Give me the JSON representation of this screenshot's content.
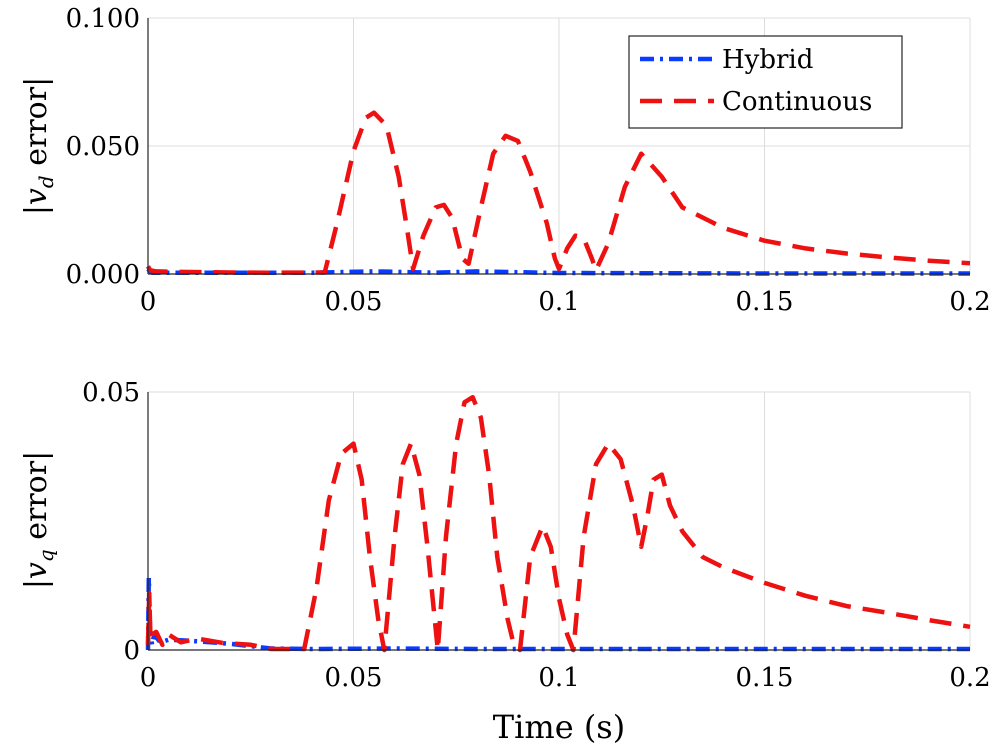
{
  "chart_data": [
    {
      "type": "line",
      "ylabel_parts": {
        "pre": "|",
        "var": "v",
        "sub": "d",
        "post": " error|"
      },
      "xlim": [
        0,
        0.2
      ],
      "ylim": [
        0,
        0.1
      ],
      "xticks": [
        0,
        0.05,
        0.1,
        0.15,
        0.2
      ],
      "xtick_labels": [
        "0",
        "0.05",
        "0.1",
        "0.15",
        "0.2"
      ],
      "yticks": [
        0,
        0.05,
        0.1
      ],
      "ytick_labels": [
        "0.000",
        "0.050",
        "0.100"
      ],
      "legend": {
        "position": "top-right",
        "entries": [
          "Hybrid",
          "Continuous"
        ]
      },
      "series": [
        {
          "name": "Hybrid",
          "color": "#0a3cff",
          "style": "dash-dot",
          "x": [
            0,
            0.0005,
            0.001,
            0.02,
            0.04,
            0.055,
            0.07,
            0.08,
            0.1,
            0.12,
            0.15,
            0.2
          ],
          "y": [
            0.002,
            0.001,
            0.0005,
            0.0005,
            0.0005,
            0.001,
            0.0005,
            0.001,
            0.0004,
            0.0003,
            0.0002,
            0.0002
          ]
        },
        {
          "name": "Continuous",
          "color": "#ee1111",
          "style": "dashed",
          "x": [
            0,
            0.0005,
            0.002,
            0.01,
            0.02,
            0.03,
            0.043,
            0.046,
            0.05,
            0.053,
            0.055,
            0.058,
            0.061,
            0.063,
            0.0645,
            0.067,
            0.07,
            0.072,
            0.074,
            0.0765,
            0.078,
            0.081,
            0.084,
            0.087,
            0.09,
            0.093,
            0.097,
            0.099,
            0.1,
            0.102,
            0.104,
            0.106,
            0.108,
            0.109,
            0.112,
            0.116,
            0.12,
            0.125,
            0.13,
            0.14,
            0.15,
            0.16,
            0.17,
            0.18,
            0.19,
            0.2
          ],
          "y": [
            0.003,
            0.0015,
            0.001,
            0.0008,
            0.0006,
            0.0005,
            0.0006,
            0.02,
            0.048,
            0.061,
            0.063,
            0.058,
            0.038,
            0.018,
            0.002,
            0.015,
            0.026,
            0.027,
            0.022,
            0.006,
            0.004,
            0.026,
            0.047,
            0.054,
            0.052,
            0.04,
            0.02,
            0.006,
            0.002,
            0.01,
            0.015,
            0.014,
            0.006,
            0.0015,
            0.012,
            0.034,
            0.047,
            0.038,
            0.026,
            0.018,
            0.013,
            0.01,
            0.008,
            0.0065,
            0.0052,
            0.0042
          ]
        }
      ]
    },
    {
      "type": "line",
      "ylabel_parts": {
        "pre": "|",
        "var": "v",
        "sub": "q",
        "post": " error|"
      },
      "xlabel": "Time (s)",
      "xlim": [
        0,
        0.2
      ],
      "ylim": [
        0,
        0.05
      ],
      "xticks": [
        0,
        0.05,
        0.1,
        0.15,
        0.2
      ],
      "xtick_labels": [
        "0",
        "0.05",
        "0.1",
        "0.15",
        "0.2"
      ],
      "yticks": [
        0,
        0.05
      ],
      "ytick_labels": [
        "0",
        "0.05"
      ],
      "series": [
        {
          "name": "Hybrid",
          "color": "#0a3cff",
          "style": "dash-dot",
          "x": [
            0,
            0.0002,
            0.0005,
            0.001,
            0.0015,
            0.002,
            0.003,
            0.005,
            0.01,
            0.02,
            0.03,
            0.04,
            0.06,
            0.08,
            0.1,
            0.13,
            0.2
          ],
          "y": [
            0,
            0.014,
            0.004,
            0.001,
            0.003,
            0.0025,
            0.0015,
            0.002,
            0.0018,
            0.0012,
            0.0003,
            0.0002,
            0.0003,
            0.0002,
            0.0002,
            0.0002,
            0.0002
          ]
        },
        {
          "name": "Continuous",
          "color": "#ee1111",
          "style": "dashed",
          "x": [
            0,
            0.0003,
            0.0006,
            0.001,
            0.002,
            0.0035,
            0.005,
            0.008,
            0.012,
            0.018,
            0.025,
            0.03,
            0.038,
            0.041,
            0.044,
            0.047,
            0.05,
            0.052,
            0.054,
            0.056,
            0.0575,
            0.06,
            0.062,
            0.064,
            0.066,
            0.068,
            0.0705,
            0.0725,
            0.075,
            0.077,
            0.079,
            0.081,
            0.083,
            0.085,
            0.0875,
            0.089,
            0.0905,
            0.093,
            0.096,
            0.098,
            0.1,
            0.102,
            0.1035,
            0.106,
            0.109,
            0.112,
            0.115,
            0.118,
            0.12,
            0.1215,
            0.123,
            0.125,
            0.127,
            0.13,
            0.135,
            0.14,
            0.15,
            0.16,
            0.17,
            0.18,
            0.19,
            0.2
          ],
          "y": [
            0.001,
            0.011,
            0.002,
            0.003,
            0.0035,
            0.001,
            0.003,
            0.0015,
            0.0022,
            0.0014,
            0.001,
            0.0002,
            0.0002,
            0.012,
            0.029,
            0.038,
            0.04,
            0.033,
            0.018,
            0.006,
            0,
            0.022,
            0.036,
            0.04,
            0.034,
            0.02,
            0,
            0.022,
            0.04,
            0.048,
            0.049,
            0.045,
            0.034,
            0.018,
            0.006,
            0.001,
            0,
            0.018,
            0.024,
            0.02,
            0.01,
            0.003,
            0,
            0.022,
            0.036,
            0.04,
            0.037,
            0.028,
            0.02,
            0.026,
            0.033,
            0.034,
            0.028,
            0.023,
            0.018,
            0.016,
            0.013,
            0.0105,
            0.0085,
            0.0072,
            0.0058,
            0.0045
          ]
        }
      ]
    }
  ]
}
